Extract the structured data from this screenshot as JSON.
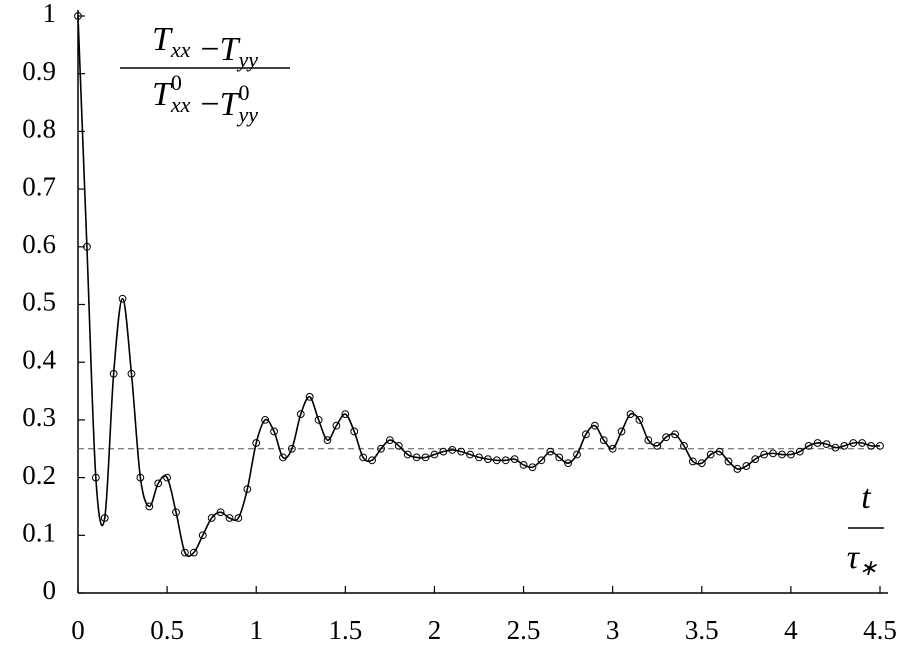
{
  "chart_data": {
    "type": "line",
    "ylabel": {
      "numerator": [
        {
          "symbol": "T",
          "sub": "xx"
        },
        {
          "op": "−"
        },
        {
          "symbol": "T",
          "sub": "yy"
        }
      ],
      "denominator": [
        {
          "symbol": "T",
          "sup": "0",
          "sub": "xx"
        },
        {
          "op": "−"
        },
        {
          "symbol": "T",
          "sup": "0",
          "sub": "yy"
        }
      ]
    },
    "xlabel": {
      "numerator": "t",
      "denominator": {
        "symbol": "τ",
        "sub": "∗"
      }
    },
    "x": [
      0,
      0.05,
      0.1,
      0.15,
      0.2,
      0.25,
      0.3,
      0.35,
      0.4,
      0.45,
      0.5,
      0.55,
      0.6,
      0.65,
      0.7,
      0.75,
      0.8,
      0.85,
      0.9,
      0.95,
      1.0,
      1.05,
      1.1,
      1.15,
      1.2,
      1.25,
      1.3,
      1.35,
      1.4,
      1.45,
      1.5,
      1.55,
      1.6,
      1.65,
      1.7,
      1.75,
      1.8,
      1.85,
      1.9,
      1.95,
      2.0,
      2.05,
      2.1,
      2.15,
      2.2,
      2.25,
      2.3,
      2.35,
      2.4,
      2.45,
      2.5,
      2.55,
      2.6,
      2.65,
      2.7,
      2.75,
      2.8,
      2.85,
      2.9,
      2.95,
      3.0,
      3.05,
      3.1,
      3.15,
      3.2,
      3.25,
      3.3,
      3.35,
      3.4,
      3.45,
      3.5,
      3.55,
      3.6,
      3.65,
      3.7,
      3.75,
      3.8,
      3.85,
      3.9,
      3.95,
      4.0,
      4.05,
      4.1,
      4.15,
      4.2,
      4.25,
      4.3,
      4.35,
      4.4,
      4.45,
      4.5
    ],
    "values": [
      1.0,
      0.6,
      0.2,
      0.13,
      0.38,
      0.51,
      0.38,
      0.2,
      0.15,
      0.19,
      0.2,
      0.14,
      0.07,
      0.07,
      0.1,
      0.13,
      0.14,
      0.13,
      0.13,
      0.18,
      0.26,
      0.3,
      0.28,
      0.235,
      0.25,
      0.31,
      0.34,
      0.3,
      0.265,
      0.29,
      0.31,
      0.28,
      0.235,
      0.23,
      0.25,
      0.265,
      0.255,
      0.24,
      0.235,
      0.235,
      0.24,
      0.245,
      0.248,
      0.245,
      0.24,
      0.235,
      0.232,
      0.23,
      0.23,
      0.232,
      0.222,
      0.218,
      0.23,
      0.245,
      0.235,
      0.225,
      0.24,
      0.275,
      0.29,
      0.265,
      0.25,
      0.28,
      0.31,
      0.3,
      0.265,
      0.255,
      0.27,
      0.275,
      0.255,
      0.228,
      0.225,
      0.24,
      0.245,
      0.228,
      0.215,
      0.22,
      0.232,
      0.24,
      0.242,
      0.24,
      0.24,
      0.245,
      0.255,
      0.26,
      0.258,
      0.252,
      0.255,
      0.26,
      0.26,
      0.255,
      0.255
    ],
    "color": "#000000",
    "reference_line": 0.25,
    "xlim": [
      0,
      4.5
    ],
    "xticks": [
      0,
      0.5,
      1,
      1.5,
      2,
      2.5,
      3,
      3.5,
      4,
      4.5
    ],
    "ylim": [
      0,
      1
    ],
    "yticks": [
      0,
      0.1,
      0.2,
      0.3,
      0.4,
      0.5,
      0.6,
      0.7,
      0.8,
      0.9,
      1
    ],
    "grid": false
  }
}
